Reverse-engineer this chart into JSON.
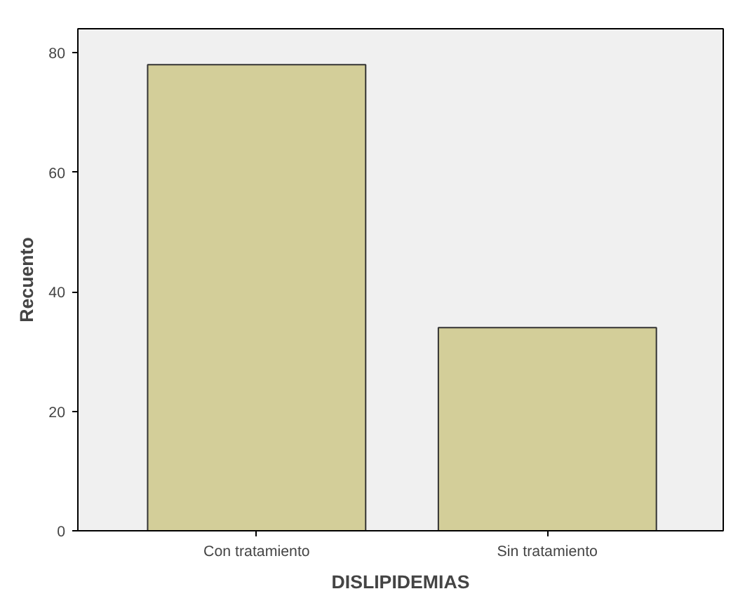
{
  "chart_data": {
    "type": "bar",
    "xlabel": "DISLIPIDEMIAS",
    "ylabel": "Recuento",
    "categories": [
      "Con tratamiento",
      "Sin tratamiento"
    ],
    "values": [
      78,
      34
    ],
    "color": "#d3ce99",
    "ylim": [
      0,
      84
    ],
    "yticks": [
      0,
      20,
      40,
      60,
      80
    ],
    "grid": false
  }
}
